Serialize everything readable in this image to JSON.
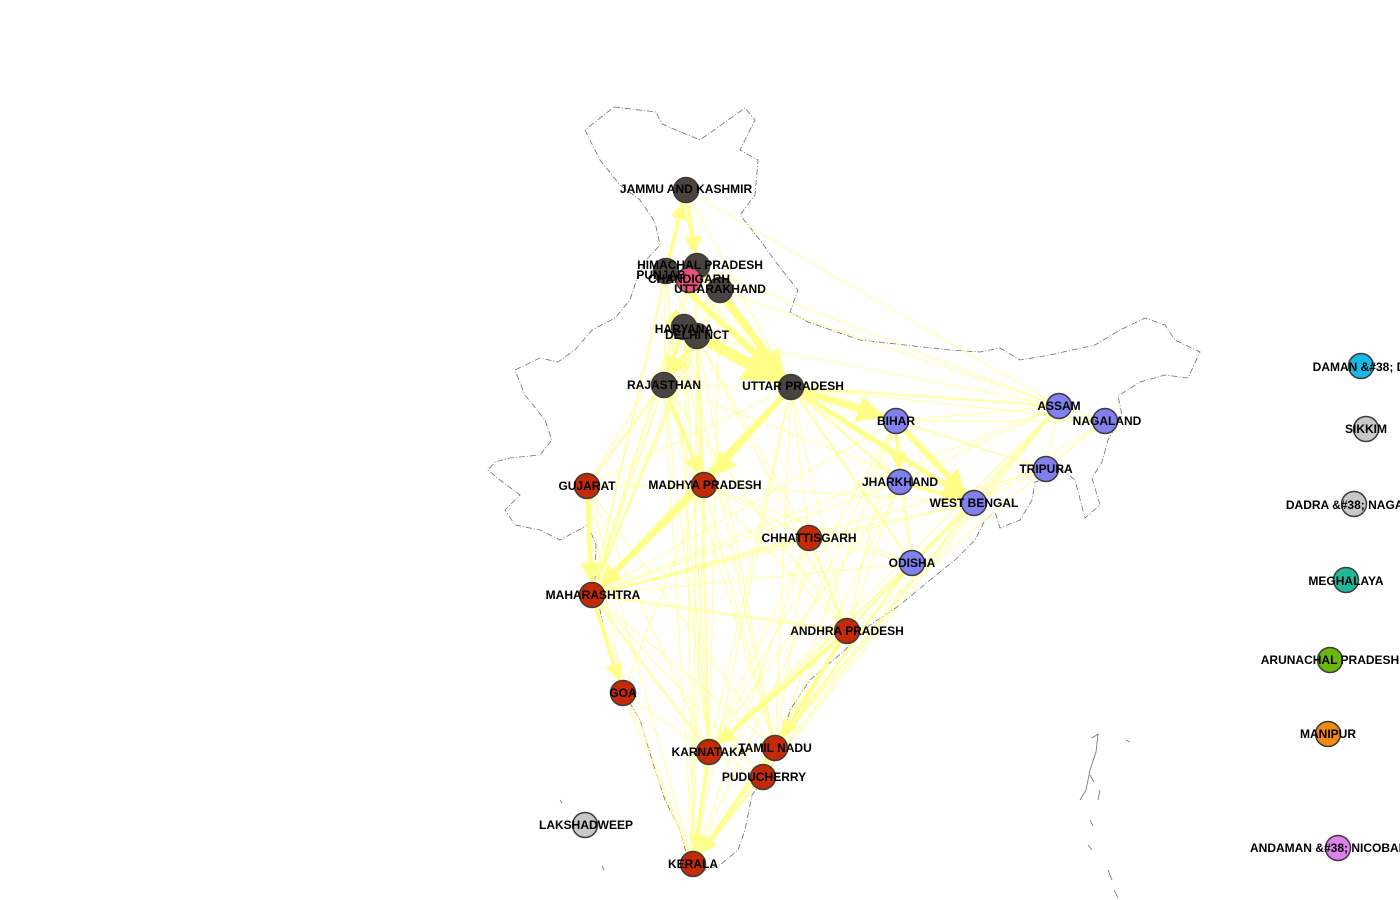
{
  "map": {
    "colors": {
      "background": "#ffffff",
      "outline": "#6e6e6e",
      "edge": "#ffff88",
      "node_stroke": "#3c3c3c"
    },
    "groups": {
      "north": "#4a4440",
      "central_south": "#c42a08",
      "east": "#8080ee",
      "isolated": "#c8c8c8",
      "chandigarh": "#e8507a",
      "daman_diu": "#18b8e8",
      "meghalaya": "#20b89a",
      "arunachal": "#6ab80c",
      "manipur": "#f08a10",
      "andaman": "#e080ee"
    },
    "nodes": [
      {
        "id": "jk",
        "label": "JAMMU AND KASHMIR",
        "group": "north"
      },
      {
        "id": "hp",
        "label": "HIMACHAL PRADESH",
        "group": "north"
      },
      {
        "id": "pb",
        "label": "PUNJAB",
        "group": "north"
      },
      {
        "id": "ch",
        "label": "CHANDIGARH",
        "group": "chandigarh"
      },
      {
        "id": "uk",
        "label": "UTTARAKHAND",
        "group": "north"
      },
      {
        "id": "hr",
        "label": "HARYANA",
        "group": "north"
      },
      {
        "id": "dl",
        "label": "DELHI NCT",
        "group": "north"
      },
      {
        "id": "rj",
        "label": "RAJASTHAN",
        "group": "north"
      },
      {
        "id": "up",
        "label": "UTTAR PRADESH",
        "group": "north"
      },
      {
        "id": "br",
        "label": "BIHAR",
        "group": "east"
      },
      {
        "id": "as",
        "label": "ASSAM",
        "group": "east"
      },
      {
        "id": "nl",
        "label": "NAGALAND",
        "group": "east"
      },
      {
        "id": "tr",
        "label": "TRIPURA",
        "group": "east"
      },
      {
        "id": "jh",
        "label": "JHARKHAND",
        "group": "east"
      },
      {
        "id": "wb",
        "label": "WEST BENGAL",
        "group": "east"
      },
      {
        "id": "od",
        "label": "ODISHA",
        "group": "east"
      },
      {
        "id": "gj",
        "label": "GUJARAT",
        "group": "central_south"
      },
      {
        "id": "mp",
        "label": "MADHYA PRADESH",
        "group": "central_south"
      },
      {
        "id": "cg",
        "label": "CHHATTISGARH",
        "group": "central_south"
      },
      {
        "id": "mh",
        "label": "MAHARASHTRA",
        "group": "central_south"
      },
      {
        "id": "ap",
        "label": "ANDHRA PRADESH",
        "group": "central_south"
      },
      {
        "id": "ga",
        "label": "GOA",
        "group": "central_south"
      },
      {
        "id": "ka",
        "label": "KARNATAKA",
        "group": "central_south"
      },
      {
        "id": "tn",
        "label": "TAMIL NADU",
        "group": "central_south"
      },
      {
        "id": "py",
        "label": "PUDUCHERRY",
        "group": "central_south"
      },
      {
        "id": "kl",
        "label": "KERALA",
        "group": "central_south"
      },
      {
        "id": "ld",
        "label": "LAKSHADWEEP",
        "group": "isolated"
      },
      {
        "id": "dd",
        "label": "DAMAN &#38; D",
        "group": "daman_diu"
      },
      {
        "id": "sk",
        "label": "SIKKIM",
        "group": "isolated"
      },
      {
        "id": "dn",
        "label": "DADRA &#38; NAGAR H",
        "group": "isolated"
      },
      {
        "id": "ml",
        "label": "MEGHALAYA",
        "group": "meghalaya"
      },
      {
        "id": "ar",
        "label": "ARUNACHAL PRADESH",
        "group": "arunachal"
      },
      {
        "id": "mn",
        "label": "MANIPUR",
        "group": "manipur"
      },
      {
        "id": "an",
        "label": "ANDAMAN &#38; NICOBAR IS",
        "group": "andaman"
      }
    ],
    "edges": [
      [
        "dl",
        "up",
        9
      ],
      [
        "hr",
        "up",
        8
      ],
      [
        "uk",
        "up",
        6
      ],
      [
        "hp",
        "up",
        4
      ],
      [
        "pb",
        "up",
        5
      ],
      [
        "up",
        "br",
        6
      ],
      [
        "up",
        "mp",
        5
      ],
      [
        "br",
        "wb",
        5
      ],
      [
        "up",
        "mh",
        4
      ],
      [
        "mp",
        "mh",
        4
      ],
      [
        "gj",
        "mh",
        4
      ],
      [
        "up",
        "wb",
        4
      ],
      [
        "hr",
        "dl",
        4
      ],
      [
        "jk",
        "hp",
        3
      ],
      [
        "pb",
        "jk",
        3
      ],
      [
        "dl",
        "rj",
        3
      ],
      [
        "rj",
        "mp",
        3
      ],
      [
        "hr",
        "rj",
        3
      ],
      [
        "br",
        "jh",
        3
      ],
      [
        "jh",
        "wb",
        3
      ],
      [
        "mh",
        "ga",
        3
      ],
      [
        "ap",
        "ka",
        3
      ],
      [
        "ap",
        "tn",
        3
      ],
      [
        "ka",
        "kl",
        3
      ],
      [
        "tn",
        "kl",
        3
      ],
      [
        "mh",
        "ka",
        2
      ],
      [
        "mh",
        "ap",
        2
      ],
      [
        "od",
        "ap",
        2
      ],
      [
        "wb",
        "od",
        2
      ],
      [
        "as",
        "wb",
        2
      ],
      [
        "od",
        "tn",
        2
      ],
      [
        "ka",
        "tn",
        2
      ],
      [
        "tn",
        "py",
        2
      ],
      [
        "mh",
        "cg",
        2
      ],
      [
        "cg",
        "ap",
        2
      ],
      [
        "up",
        "as",
        2
      ],
      [
        "up",
        "od",
        2
      ],
      [
        "dl",
        "mh",
        2
      ],
      [
        "dl",
        "mp",
        2
      ],
      [
        "up",
        "jh",
        2
      ],
      [
        "jk",
        "dl",
        1
      ],
      [
        "jk",
        "up",
        1
      ],
      [
        "jk",
        "mh",
        1
      ],
      [
        "jk",
        "as",
        1
      ],
      [
        "hp",
        "mh",
        1
      ],
      [
        "pb",
        "mh",
        1
      ],
      [
        "pb",
        "rj",
        1
      ],
      [
        "uk",
        "dl",
        1
      ],
      [
        "uk",
        "mh",
        1
      ],
      [
        "uk",
        "as",
        1
      ],
      [
        "hr",
        "mh",
        1
      ],
      [
        "hr",
        "mp",
        1
      ],
      [
        "hr",
        "gj",
        1
      ],
      [
        "dl",
        "gj",
        1
      ],
      [
        "dl",
        "ka",
        1
      ],
      [
        "dl",
        "wb",
        1
      ],
      [
        "dl",
        "br",
        1
      ],
      [
        "dl",
        "as",
        1
      ],
      [
        "dl",
        "ap",
        1
      ],
      [
        "dl",
        "tn",
        1
      ],
      [
        "dl",
        "kl",
        1
      ],
      [
        "dl",
        "cg",
        1
      ],
      [
        "rj",
        "gj",
        1
      ],
      [
        "rj",
        "mh",
        1
      ],
      [
        "rj",
        "ka",
        1
      ],
      [
        "rj",
        "up",
        1
      ],
      [
        "rj",
        "kl",
        1
      ],
      [
        "up",
        "ka",
        1
      ],
      [
        "up",
        "tn",
        1
      ],
      [
        "up",
        "kl",
        1
      ],
      [
        "up",
        "cg",
        1
      ],
      [
        "up",
        "ap",
        1
      ],
      [
        "up",
        "gj",
        1
      ],
      [
        "up",
        "nl",
        1
      ],
      [
        "up",
        "tr",
        1
      ],
      [
        "br",
        "as",
        1
      ],
      [
        "br",
        "mh",
        1
      ],
      [
        "br",
        "od",
        1
      ],
      [
        "br",
        "ka",
        1
      ],
      [
        "br",
        "tn",
        1
      ],
      [
        "br",
        "kl",
        1
      ],
      [
        "br",
        "ap",
        1
      ],
      [
        "br",
        "nl",
        1
      ],
      [
        "br",
        "tr",
        1
      ],
      [
        "as",
        "nl",
        1
      ],
      [
        "as",
        "tr",
        1
      ],
      [
        "as",
        "mh",
        1
      ],
      [
        "as",
        "ka",
        1
      ],
      [
        "as",
        "tn",
        1
      ],
      [
        "as",
        "kl",
        1
      ],
      [
        "as",
        "od",
        1
      ],
      [
        "as",
        "jh",
        1
      ],
      [
        "nl",
        "wb",
        1
      ],
      [
        "nl",
        "tr",
        1
      ],
      [
        "tr",
        "wb",
        1
      ],
      [
        "tr",
        "mh",
        1
      ],
      [
        "tr",
        "ka",
        1
      ],
      [
        "jh",
        "od",
        1
      ],
      [
        "jh",
        "mh",
        1
      ],
      [
        "jh",
        "ka",
        1
      ],
      [
        "jh",
        "tn",
        1
      ],
      [
        "jh",
        "ap",
        1
      ],
      [
        "wb",
        "mh",
        1
      ],
      [
        "wb",
        "ka",
        1
      ],
      [
        "wb",
        "tn",
        1
      ],
      [
        "wb",
        "kl",
        1
      ],
      [
        "wb",
        "ap",
        1
      ],
      [
        "wb",
        "cg",
        1
      ],
      [
        "wb",
        "mp",
        1
      ],
      [
        "od",
        "mh",
        1
      ],
      [
        "od",
        "ka",
        1
      ],
      [
        "od",
        "kl",
        1
      ],
      [
        "od",
        "cg",
        1
      ],
      [
        "od",
        "mp",
        1
      ],
      [
        "gj",
        "mp",
        1
      ],
      [
        "gj",
        "ka",
        1
      ],
      [
        "gj",
        "kl",
        1
      ],
      [
        "gj",
        "ga",
        1
      ],
      [
        "gj",
        "tn",
        1
      ],
      [
        "mp",
        "cg",
        1
      ],
      [
        "mp",
        "ka",
        1
      ],
      [
        "mp",
        "tn",
        1
      ],
      [
        "mp",
        "kl",
        1
      ],
      [
        "mp",
        "ap",
        1
      ],
      [
        "mp",
        "ga",
        1
      ],
      [
        "cg",
        "ka",
        1
      ],
      [
        "cg",
        "tn",
        1
      ],
      [
        "cg",
        "kl",
        1
      ],
      [
        "mh",
        "tn",
        1
      ],
      [
        "mh",
        "kl",
        1
      ],
      [
        "mh",
        "py",
        1
      ],
      [
        "ap",
        "kl",
        1
      ],
      [
        "ap",
        "py",
        1
      ],
      [
        "ga",
        "ka",
        1
      ],
      [
        "ga",
        "kl",
        1
      ],
      [
        "ka",
        "py",
        1
      ],
      [
        "py",
        "kl",
        1
      ],
      [
        "ch",
        "up",
        1
      ],
      [
        "ch",
        "mh",
        1
      ],
      [
        "hp",
        "dl",
        1
      ],
      [
        "pb",
        "dl",
        1
      ],
      [
        "hp",
        "as",
        1
      ],
      [
        "pb",
        "ka",
        1
      ],
      [
        "uk",
        "ka",
        1
      ],
      [
        "hr",
        "ka",
        1
      ],
      [
        "hr",
        "tn",
        1
      ],
      [
        "hr",
        "kl",
        1
      ],
      [
        "rj",
        "tn",
        1
      ],
      [
        "rj",
        "ap",
        1
      ],
      [
        "rj",
        "wb",
        1
      ]
    ]
  }
}
